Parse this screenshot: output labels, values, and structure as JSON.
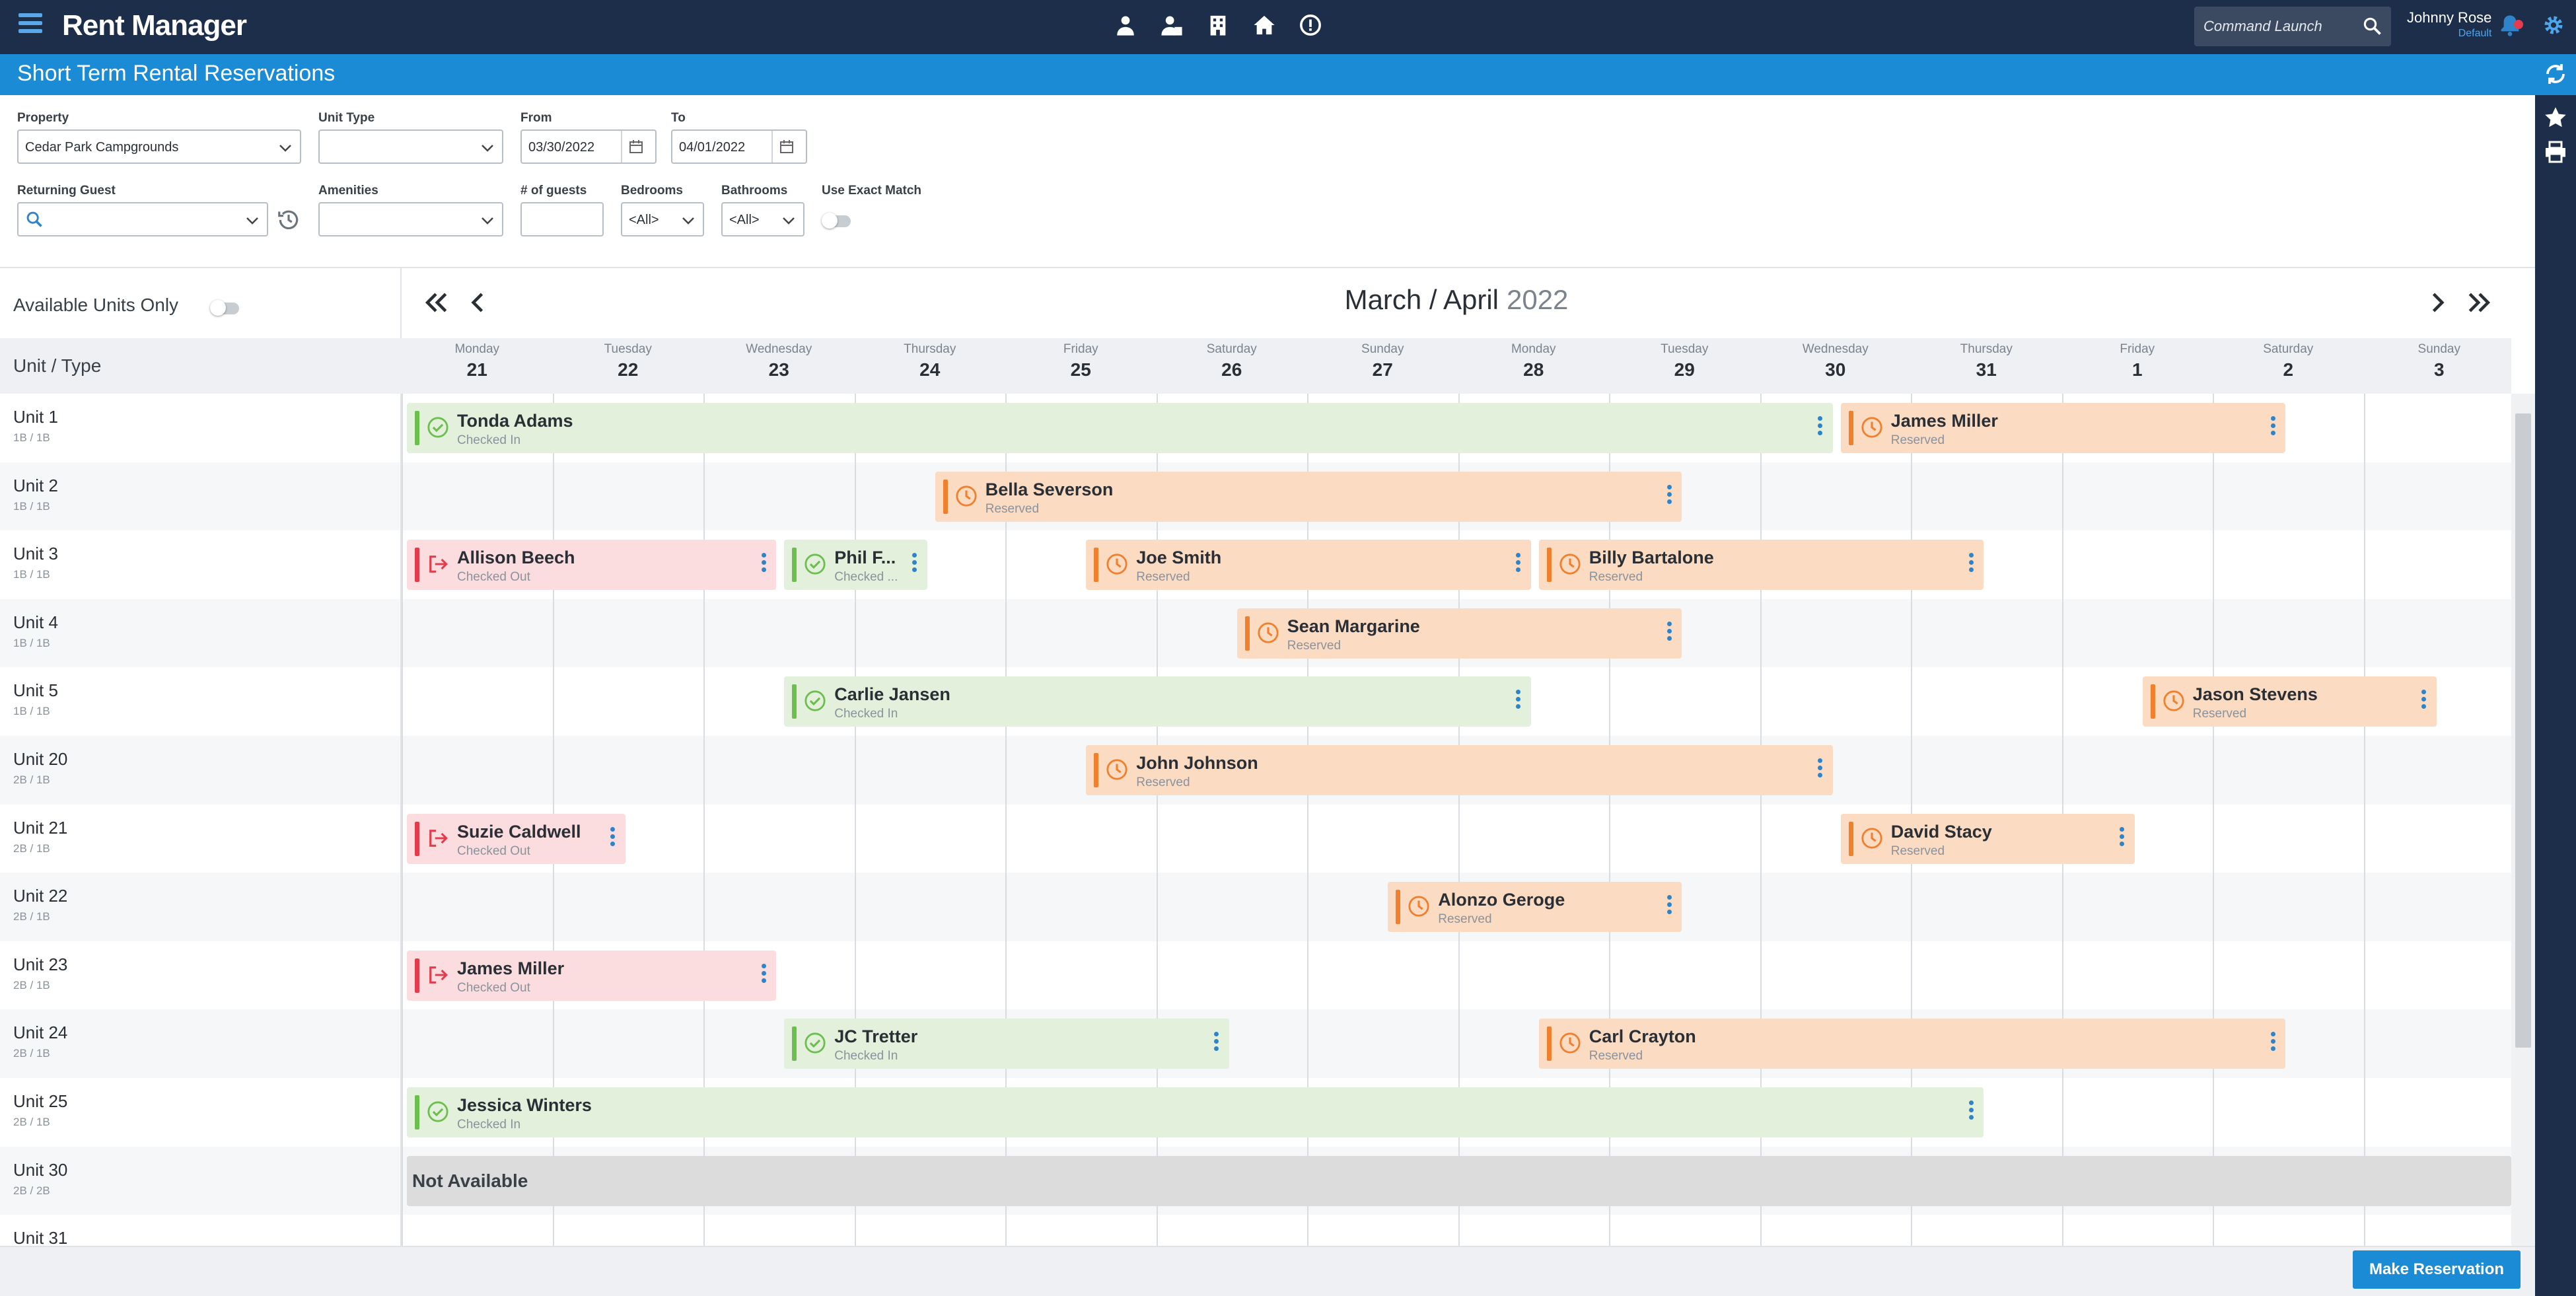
{
  "app": {
    "title": "Rent Manager",
    "page_title": "Short Term Rental Reservations"
  },
  "topbar": {
    "command_placeholder": "Command Launch",
    "user_name": "Johnny Rose",
    "user_role": "Default",
    "icons": [
      "user-icon",
      "user-badge-icon",
      "building-icon",
      "home-icon",
      "info-icon"
    ]
  },
  "filters": {
    "property_label": "Property",
    "property_value": "Cedar Park Campgrounds",
    "unit_type_label": "Unit Type",
    "unit_type_value": "",
    "from_label": "From",
    "from_value": "03/30/2022",
    "to_label": "To",
    "to_value": "04/01/2022",
    "returning_guest_label": "Returning Guest",
    "amenities_label": "Amenities",
    "guests_label": "# of guests",
    "bedrooms_label": "Bedrooms",
    "bedrooms_value": "<All>",
    "bathrooms_label": "Bathrooms",
    "bathrooms_value": "<All>",
    "exact_match_label": "Use Exact Match"
  },
  "calendar": {
    "available_only_label": "Available Units Only",
    "unit_type_header": "Unit / Type",
    "month_title": "March / April",
    "year": "2022",
    "days": [
      {
        "name": "Monday",
        "num": "21"
      },
      {
        "name": "Tuesday",
        "num": "22"
      },
      {
        "name": "Wednesday",
        "num": "23"
      },
      {
        "name": "Thursday",
        "num": "24"
      },
      {
        "name": "Friday",
        "num": "25"
      },
      {
        "name": "Saturday",
        "num": "26"
      },
      {
        "name": "Sunday",
        "num": "27"
      },
      {
        "name": "Monday",
        "num": "28"
      },
      {
        "name": "Tuesday",
        "num": "29"
      },
      {
        "name": "Wednesday",
        "num": "30"
      },
      {
        "name": "Thursday",
        "num": "31"
      },
      {
        "name": "Friday",
        "num": "1"
      },
      {
        "name": "Saturday",
        "num": "2"
      },
      {
        "name": "Sunday",
        "num": "3"
      }
    ],
    "units": [
      {
        "name": "Unit 1",
        "type": "1B / 1B"
      },
      {
        "name": "Unit 2",
        "type": "1B / 1B"
      },
      {
        "name": "Unit 3",
        "type": "1B / 1B"
      },
      {
        "name": "Unit 4",
        "type": "1B / 1B"
      },
      {
        "name": "Unit 5",
        "type": "1B / 1B"
      },
      {
        "name": "Unit 20",
        "type": "2B / 1B"
      },
      {
        "name": "Unit 21",
        "type": "2B / 1B"
      },
      {
        "name": "Unit 22",
        "type": "2B / 1B"
      },
      {
        "name": "Unit 23",
        "type": "2B / 1B"
      },
      {
        "name": "Unit 24",
        "type": "2B / 1B"
      },
      {
        "name": "Unit 25",
        "type": "2B / 1B"
      },
      {
        "name": "Unit 30",
        "type": "2B / 2B"
      },
      {
        "name": "Unit 31",
        "type": ""
      }
    ],
    "not_available_text": "Not Available",
    "reservations": [
      {
        "row": 0,
        "start_day": 0,
        "end_day": 9.5,
        "guest": "Tonda Adams",
        "status": "Checked In",
        "kind": "checked-in"
      },
      {
        "row": 0,
        "start_day": 9.5,
        "end_day": 12.5,
        "guest": "James Miller",
        "status": "Reserved",
        "kind": "reserved"
      },
      {
        "row": 1,
        "start_day": 3.5,
        "end_day": 8.5,
        "guest": "Bella Severson",
        "status": "Reserved",
        "kind": "reserved"
      },
      {
        "row": 2,
        "start_day": 0,
        "end_day": 2.5,
        "guest": "Allison Beech",
        "status": "Checked Out",
        "kind": "checked-out"
      },
      {
        "row": 2,
        "start_day": 2.5,
        "end_day": 3.5,
        "guest": "Phil F...",
        "status": "Checked ...",
        "kind": "checked-in"
      },
      {
        "row": 2,
        "start_day": 4.5,
        "end_day": 7.5,
        "guest": "Joe Smith",
        "status": "Reserved",
        "kind": "reserved"
      },
      {
        "row": 2,
        "start_day": 7.5,
        "end_day": 10.5,
        "guest": "Billy Bartalone",
        "status": "Reserved",
        "kind": "reserved"
      },
      {
        "row": 3,
        "start_day": 5.5,
        "end_day": 8.5,
        "guest": "Sean Margarine",
        "status": "Reserved",
        "kind": "reserved"
      },
      {
        "row": 4,
        "start_day": 2.5,
        "end_day": 7.5,
        "guest": "Carlie Jansen",
        "status": "Checked In",
        "kind": "checked-in"
      },
      {
        "row": 4,
        "start_day": 11.5,
        "end_day": 13.5,
        "guest": "Jason Stevens",
        "status": "Reserved",
        "kind": "reserved"
      },
      {
        "row": 5,
        "start_day": 4.5,
        "end_day": 9.5,
        "guest": "John Johnson",
        "status": "Reserved",
        "kind": "reserved"
      },
      {
        "row": 6,
        "start_day": 0,
        "end_day": 1.5,
        "guest": "Suzie Caldwell",
        "status": "Checked Out",
        "kind": "checked-out"
      },
      {
        "row": 6,
        "start_day": 9.5,
        "end_day": 11.5,
        "guest": "David Stacy",
        "status": "Reserved",
        "kind": "reserved"
      },
      {
        "row": 7,
        "start_day": 6.5,
        "end_day": 8.5,
        "guest": "Alonzo Geroge",
        "status": "Reserved",
        "kind": "reserved"
      },
      {
        "row": 8,
        "start_day": 0,
        "end_day": 2.5,
        "guest": "James Miller",
        "status": "Checked Out",
        "kind": "checked-out"
      },
      {
        "row": 9,
        "start_day": 2.5,
        "end_day": 5.5,
        "guest": "JC Tretter",
        "status": "Checked In",
        "kind": "checked-in"
      },
      {
        "row": 9,
        "start_day": 7.5,
        "end_day": 12.5,
        "guest": "Carl Crayton",
        "status": "Reserved",
        "kind": "reserved"
      },
      {
        "row": 10,
        "start_day": 0,
        "end_day": 10.5,
        "guest": "Jessica Winters",
        "status": "Checked In",
        "kind": "checked-in"
      }
    ]
  },
  "footer": {
    "make_reservation_label": "Make Reservation"
  }
}
